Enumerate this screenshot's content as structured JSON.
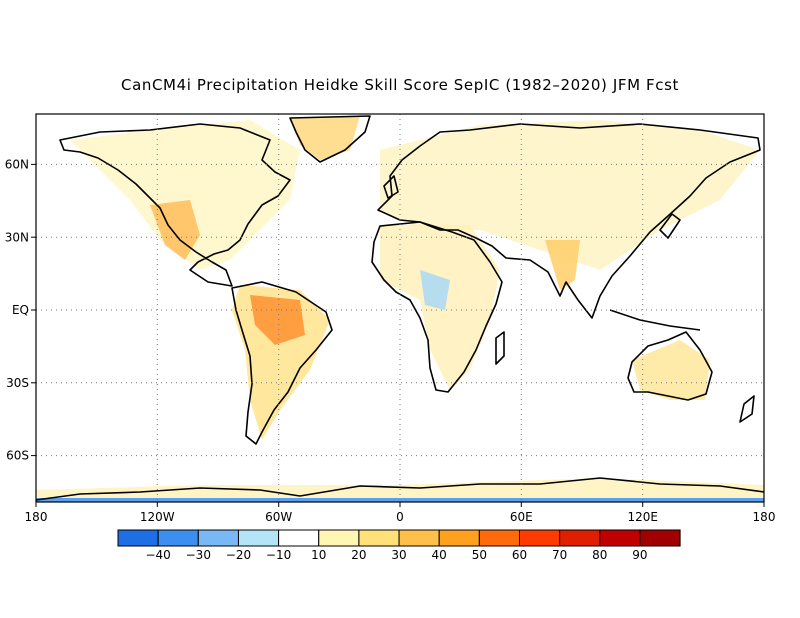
{
  "title": "CanCM4i Precipitation Heidke Skill Score SepIC (1982–2020) JFM Fcst",
  "map": {
    "lon_ticks": [
      "180",
      "120W",
      "60W",
      "0",
      "60E",
      "120E",
      "180"
    ],
    "lat_ticks": [
      "60N",
      "30N",
      "EQ",
      "30S",
      "60S"
    ],
    "grid": "dotted"
  },
  "colorbar": {
    "labels": [
      "−40",
      "−30",
      "−20",
      "−10",
      "10",
      "20",
      "30",
      "40",
      "50",
      "60",
      "70",
      "80",
      "90"
    ],
    "colors": [
      "#1e6fe6",
      "#3c8ff0",
      "#78b8f4",
      "#b4e4f8",
      "#ffffff",
      "#fff6b4",
      "#ffe079",
      "#ffc04a",
      "#ffa01e",
      "#ff6a0a",
      "#ff3c00",
      "#e01e00",
      "#c00000",
      "#a00000"
    ]
  }
}
